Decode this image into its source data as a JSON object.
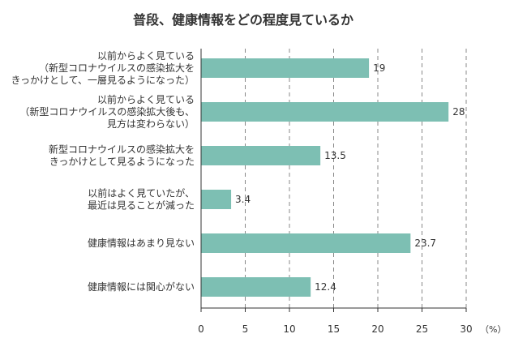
{
  "chart_data": {
    "type": "bar",
    "orientation": "horizontal",
    "title": "普段、健康情報をどの程度見ているか",
    "categories": [
      [
        "以前からよく見ている",
        "（新型コロナウイルスの感染拡大を",
        "きっかけとして、一層見るようになった）"
      ],
      [
        "以前からよく見ている",
        "（新型コロナウイルスの感染拡大後も、",
        "見方は変わらない）"
      ],
      [
        "新型コロナウイルスの感染拡大を",
        "きっかけとして見るようになった"
      ],
      [
        "以前はよく見ていたが、",
        "最近は見ることが減った"
      ],
      [
        "健康情報はあまり見ない"
      ],
      [
        "健康情報には関心がない"
      ]
    ],
    "values": [
      19,
      28,
      13.5,
      3.4,
      23.7,
      12.4
    ],
    "value_labels": [
      "19",
      "28",
      "13.5",
      "3.4",
      "23.7",
      "12.4"
    ],
    "xlim": [
      0,
      30
    ],
    "xticks": [
      0,
      5,
      10,
      15,
      20,
      25,
      30
    ],
    "xtick_labels": [
      "0",
      "5",
      "10",
      "15",
      "20",
      "25",
      "30"
    ],
    "unit": "（%）",
    "grid": "vertical dashed",
    "bar_color": "#7dbfb3",
    "axis_color": "#333333",
    "grid_color": "#888888"
  }
}
